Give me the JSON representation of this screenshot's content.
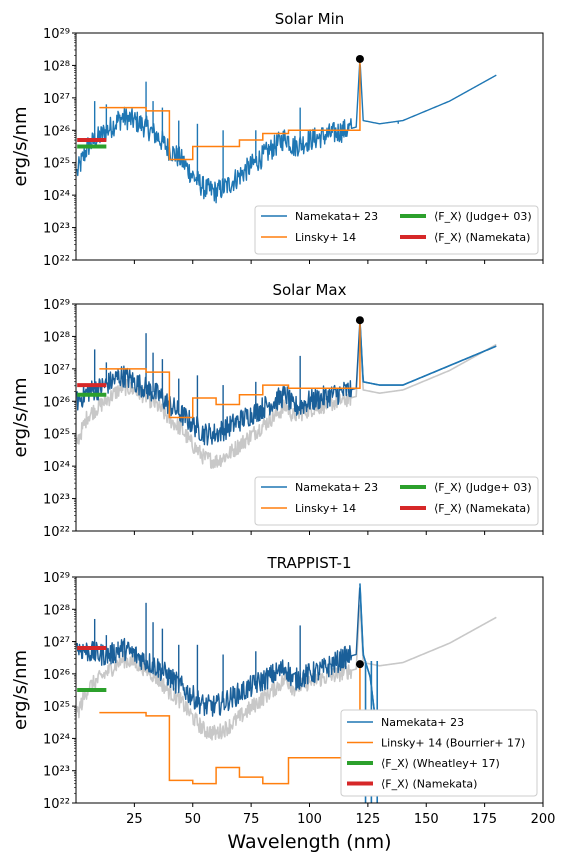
{
  "figure": {
    "xlabel": "Wavelength (nm)",
    "ylabel": "erg/s/nm",
    "colors": {
      "namekata": "#1f77b4",
      "namekata_dark": "#1a5f99",
      "linsky": "#ff7f0e",
      "judge": "#2ca02c",
      "nk_fx": "#d62728",
      "ref": "#c8c8c8"
    }
  },
  "chart_data": [
    {
      "type": "line",
      "title": "Solar Min",
      "xlim": [
        0,
        200
      ],
      "ylim_log10": [
        22,
        29
      ],
      "x_ticks": [
        25,
        50,
        75,
        100,
        125,
        150,
        175,
        200
      ],
      "y_ticks": [
        "10²²",
        "10²³",
        "10²⁴",
        "10²⁵",
        "10²⁶",
        "10²⁷",
        "10²⁸",
        "10²⁹"
      ],
      "grid": false,
      "legend": {
        "placement": "lower-right",
        "columns": 2,
        "entries": [
          "Namekata+ 23",
          "Linsky+ 14",
          "⟨F_X⟩ (Judge+ 03)",
          "⟨F_X⟩ (Namekata)"
        ]
      },
      "series": [
        {
          "name": "Namekata+ 23",
          "style": "spiky-line",
          "x": [
            0.5,
            5,
            10,
            15,
            20,
            25,
            30,
            35,
            40,
            45,
            50,
            55,
            60,
            65,
            70,
            75,
            80,
            85,
            90,
            93,
            97,
            100,
            105,
            110,
            115,
            120,
            121.6,
            123,
            130,
            140,
            150,
            160,
            170,
            180
          ],
          "log10_y": [
            24.7,
            25.5,
            25.8,
            26.1,
            26.4,
            26.3,
            26.1,
            25.8,
            25.4,
            25.1,
            24.6,
            24.2,
            24.1,
            24.3,
            24.6,
            24.9,
            25.2,
            25.5,
            25.8,
            25.5,
            25.6,
            25.7,
            25.8,
            25.9,
            26.0,
            26.1,
            28.2,
            26.3,
            26.2,
            26.3,
            26.6,
            26.9,
            27.3,
            27.7
          ],
          "spikes": [
            [
              8,
              26.9
            ],
            [
              13,
              26.8
            ],
            [
              18,
              26.6
            ],
            [
              30,
              27.5
            ],
            [
              33,
              26.9
            ],
            [
              37,
              26.7
            ],
            [
              44,
              26.3
            ],
            [
              52,
              26.2
            ],
            [
              63,
              26.0
            ],
            [
              77,
              26.0
            ],
            [
              96,
              26.7
            ],
            [
              121.6,
              28.2
            ],
            [
              138,
              26.2
            ]
          ]
        },
        {
          "name": "Linsky+ 14",
          "style": "step",
          "edges": [
            10,
            20,
            30,
            40,
            50,
            60,
            70,
            80,
            91,
            117,
            121.6
          ],
          "log10_values": [
            26.7,
            26.7,
            26.6,
            25.1,
            25.5,
            25.5,
            25.7,
            25.9,
            26.0,
            26.0,
            28.2
          ]
        },
        {
          "name": "⟨F_X⟩ (Judge+ 03)",
          "x": [
            0.5,
            13
          ],
          "log10_y": 25.5
        },
        {
          "name": "⟨F_X⟩ (Namekata)",
          "x": [
            0.5,
            13
          ],
          "log10_y": 25.7
        }
      ],
      "marker": {
        "x": 121.6,
        "log10_y": 28.2
      }
    },
    {
      "type": "line",
      "title": "Solar Max",
      "xlim": [
        0,
        200
      ],
      "ylim_log10": [
        22,
        29
      ],
      "x_ticks": [
        25,
        50,
        75,
        100,
        125,
        150,
        175,
        200
      ],
      "y_ticks": [
        "10²²",
        "10²³",
        "10²⁴",
        "10²⁵",
        "10²⁶",
        "10²⁷",
        "10²⁸",
        "10²⁹"
      ],
      "grid": false,
      "legend": {
        "placement": "lower-right",
        "columns": 2,
        "entries": [
          "Namekata+ 23",
          "Linsky+ 14",
          "⟨F_X⟩ (Judge+ 03)",
          "⟨F_X⟩ (Namekata)"
        ]
      },
      "series": [
        {
          "name": "Namekata+ 23",
          "style": "spiky-line",
          "x": [
            0.5,
            5,
            10,
            15,
            20,
            25,
            30,
            35,
            40,
            45,
            50,
            55,
            60,
            65,
            70,
            75,
            80,
            85,
            90,
            93,
            97,
            100,
            105,
            110,
            115,
            120,
            121.6,
            123,
            130,
            140,
            150,
            160,
            170,
            180
          ],
          "log10_y": [
            26.0,
            26.3,
            26.4,
            26.6,
            26.8,
            26.6,
            26.4,
            26.2,
            25.9,
            25.6,
            25.3,
            25.0,
            25.0,
            25.2,
            25.4,
            25.6,
            25.8,
            26.0,
            26.2,
            25.8,
            25.9,
            26.0,
            26.1,
            26.2,
            26.3,
            26.4,
            28.5,
            26.6,
            26.5,
            26.5,
            26.8,
            27.1,
            27.4,
            27.7
          ],
          "spikes": [
            [
              8,
              27.6
            ],
            [
              13,
              27.2
            ],
            [
              18,
              27.0
            ],
            [
              30,
              28.1
            ],
            [
              33,
              27.5
            ],
            [
              37,
              27.3
            ],
            [
              44,
              26.7
            ],
            [
              52,
              26.8
            ],
            [
              63,
              26.5
            ],
            [
              77,
              26.6
            ],
            [
              96,
              27.4
            ],
            [
              121.6,
              28.5
            ],
            [
              138,
              26.5
            ]
          ]
        },
        {
          "name": "Linsky+ 14",
          "style": "step",
          "edges": [
            10,
            20,
            30,
            40,
            50,
            60,
            70,
            80,
            91,
            117,
            121.6
          ],
          "log10_values": [
            27.0,
            27.0,
            26.9,
            25.5,
            26.1,
            25.9,
            26.2,
            26.5,
            26.4,
            26.4,
            28.5
          ]
        },
        {
          "name": "⟨F_X⟩ (Judge+ 03)",
          "x": [
            0.5,
            13
          ],
          "log10_y": 26.2
        },
        {
          "name": "⟨F_X⟩ (Namekata)",
          "x": [
            0.5,
            13
          ],
          "log10_y": 26.5
        }
      ],
      "marker": {
        "x": 121.6,
        "log10_y": 28.5
      }
    },
    {
      "type": "line",
      "title": "TRAPPIST-1",
      "xlim": [
        0,
        200
      ],
      "ylim_log10": [
        22,
        29
      ],
      "x_ticks": [
        25,
        50,
        75,
        100,
        125,
        150,
        175,
        200
      ],
      "y_ticks": [
        "10²²",
        "10²³",
        "10²⁴",
        "10²⁵",
        "10²⁶",
        "10²⁷",
        "10²⁸",
        "10²⁹"
      ],
      "grid": false,
      "legend": {
        "placement": "lower-right",
        "columns": 1,
        "entries": [
          "Namekata+ 23",
          "Linsky+ 14 (Bourrier+ 17)",
          "⟨F_X⟩ (Wheatley+ 17)",
          "⟨F_X⟩ (Namekata)"
        ]
      },
      "series": [
        {
          "name": "Namekata+ 23",
          "style": "spiky-line",
          "x": [
            0.5,
            5,
            10,
            15,
            20,
            25,
            30,
            35,
            40,
            45,
            50,
            55,
            60,
            65,
            70,
            75,
            80,
            85,
            90,
            93,
            97,
            100,
            105,
            110,
            115,
            120,
            121.6,
            123,
            126,
            130
          ],
          "log10_y": [
            26.8,
            26.7,
            26.6,
            26.6,
            26.8,
            26.6,
            26.4,
            26.2,
            25.9,
            25.6,
            25.3,
            25.0,
            25.0,
            25.2,
            25.4,
            25.6,
            25.8,
            26.0,
            26.2,
            25.8,
            25.9,
            26.0,
            26.1,
            26.3,
            26.5,
            26.6,
            28.8,
            26.6,
            25.9,
            23.5
          ],
          "spikes": [
            [
              8,
              27.7
            ],
            [
              13,
              27.2
            ],
            [
              18,
              27.0
            ],
            [
              30,
              28.2
            ],
            [
              33,
              27.6
            ],
            [
              37,
              27.4
            ],
            [
              44,
              26.9
            ],
            [
              52,
              26.9
            ],
            [
              63,
              26.6
            ],
            [
              77,
              26.7
            ],
            [
              96,
              27.5
            ],
            [
              121.6,
              28.8
            ]
          ]
        },
        {
          "name": "Linsky+ 14 (Bourrier+ 17)",
          "style": "step",
          "edges": [
            10,
            20,
            30,
            40,
            50,
            60,
            70,
            80,
            91,
            117,
            121.6
          ],
          "log10_values": [
            24.8,
            24.8,
            24.7,
            22.7,
            22.6,
            23.1,
            22.8,
            22.6,
            23.4,
            23.4,
            26.3
          ]
        },
        {
          "name": "⟨F_X⟩ (Wheatley+ 17)",
          "x": [
            0.5,
            13
          ],
          "log10_y": 25.5
        },
        {
          "name": "⟨F_X⟩ (Namekata)",
          "x": [
            0.5,
            13
          ],
          "log10_y": 26.8
        }
      ],
      "marker": {
        "x": 121.6,
        "log10_y": 26.3
      }
    }
  ]
}
